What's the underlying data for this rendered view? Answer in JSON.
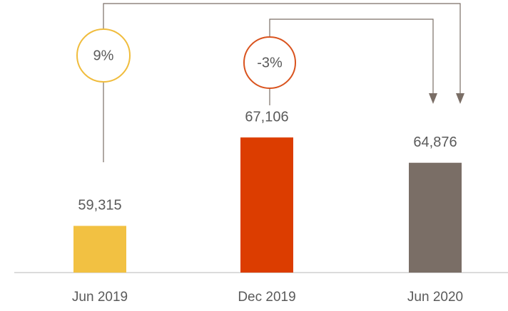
{
  "chart_data": {
    "type": "bar",
    "categories": [
      "Jun 2019",
      "Dec 2019",
      "Jun 2020"
    ],
    "values": [
      59315,
      67106,
      64876
    ],
    "value_labels": [
      "59,315",
      "67,106",
      "64,876"
    ],
    "colors": [
      "#f2c142",
      "#dc3d00",
      "#7a6e66"
    ],
    "ylim": [
      55200,
      70000
    ],
    "annotations": [
      {
        "text": "9%",
        "color": "#f0bc3c"
      },
      {
        "text": "-3%",
        "color": "#d9531e"
      }
    ]
  }
}
